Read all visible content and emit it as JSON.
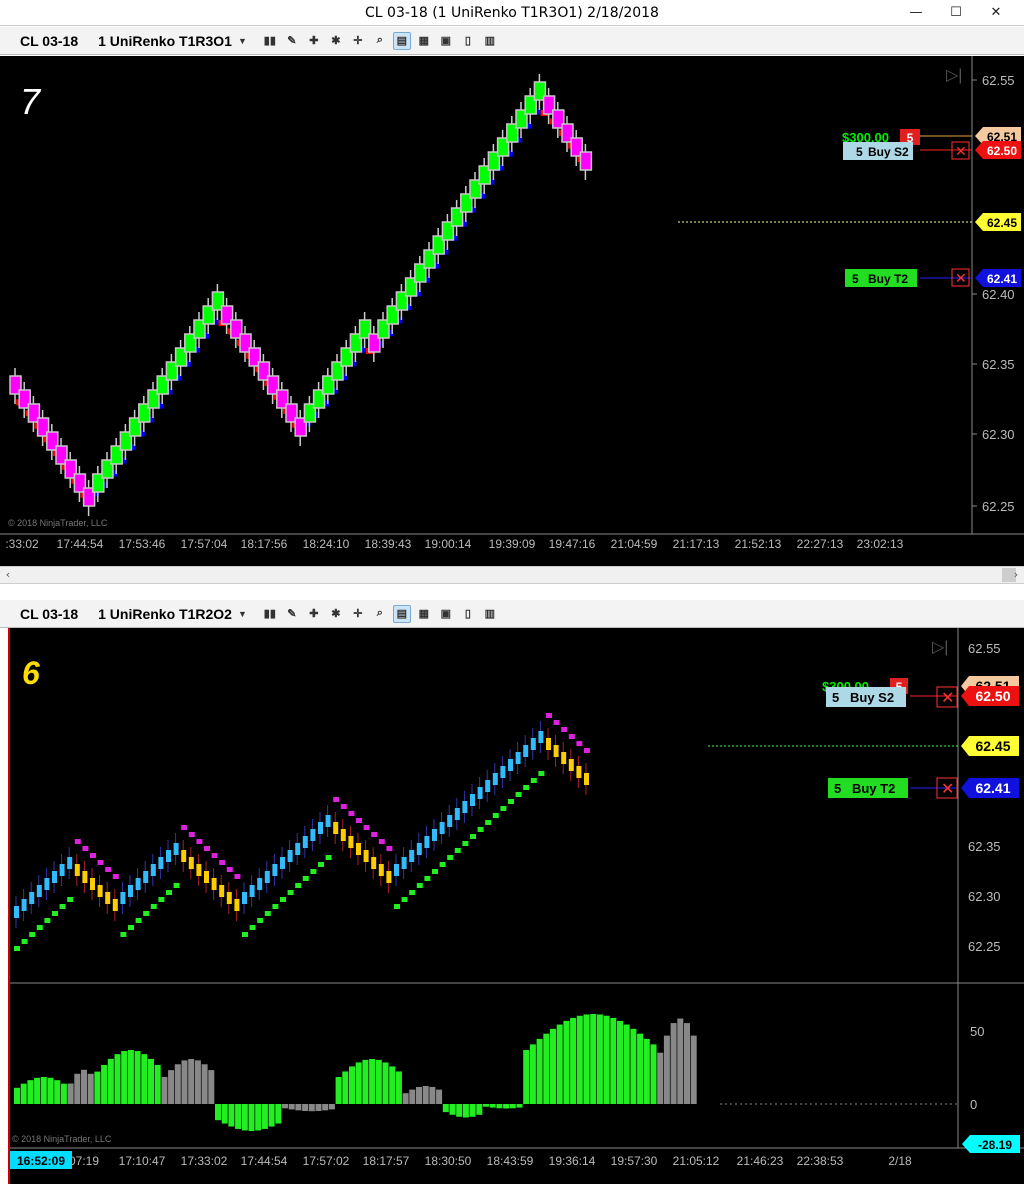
{
  "window": {
    "title": "CL 03-18 (1 UniRenko T1R3O1)  2/18/2018"
  },
  "top_toolbar": {
    "instrument": "CL 03-18",
    "series": "1 UniRenko T1R3O1"
  },
  "bottom_toolbar": {
    "instrument": "CL 03-18",
    "series": "1 UniRenko T1R2O2"
  },
  "colors": {
    "up_bar": "#00ff00",
    "down_bar": "#ff00ff",
    "uptrend_line": "#0000ff",
    "downtrend_line": "#ff0000",
    "cyan_bar": "#33bbff",
    "gold_bar": "#ffcc00",
    "histo_green": "#22ee22",
    "histo_gray": "#888888"
  },
  "top_chart": {
    "label": "7",
    "price_ticks": [
      "62.55",
      "62.40",
      "62.35",
      "62.30",
      "62.25"
    ],
    "time_ticks": [
      ":33:02",
      "17:44:54",
      "17:53:46",
      "17:57:04",
      "18:17:56",
      "18:24:10",
      "18:39:43",
      "19:00:14",
      "19:39:09",
      "19:47:16",
      "21:04:59",
      "21:17:13",
      "21:52:13",
      "22:27:13",
      "23:02:13"
    ],
    "copyright": "© 2018 NinjaTrader, LLC",
    "pnl": "$300.00",
    "pnl_qty": "5",
    "entry_price": "62.51",
    "order_s2": {
      "qty": "5",
      "label": "Buy S2",
      "price": "62.50"
    },
    "last_price": "62.45",
    "order_t2": {
      "qty": "5",
      "label": "Buy T2",
      "price": "62.41"
    }
  },
  "bottom_chart": {
    "label": "6",
    "price_ticks": [
      "62.55",
      "62.35",
      "62.30",
      "62.25"
    ],
    "time_ticks": [
      "07:19",
      "17:10:47",
      "17:33:02",
      "17:44:54",
      "17:57:02",
      "18:17:57",
      "18:30:50",
      "18:43:59",
      "19:36:14",
      "19:57:30",
      "21:05:12",
      "21:46:23",
      "22:38:53",
      "2/18"
    ],
    "copyright": "© 2018 NinjaTrader, LLC",
    "pnl": "$300.00",
    "pnl_qty": "5",
    "entry_price": "62.51",
    "order_s2": {
      "qty": "5",
      "label": "Buy S2",
      "price": "62.50"
    },
    "last_price": "62.45",
    "order_t2": {
      "qty": "5",
      "label": "Buy T2",
      "price": "62.41"
    },
    "osc_ticks": [
      "50",
      "0"
    ],
    "osc_value": "-28.19",
    "current_time": "16:52:09"
  }
}
